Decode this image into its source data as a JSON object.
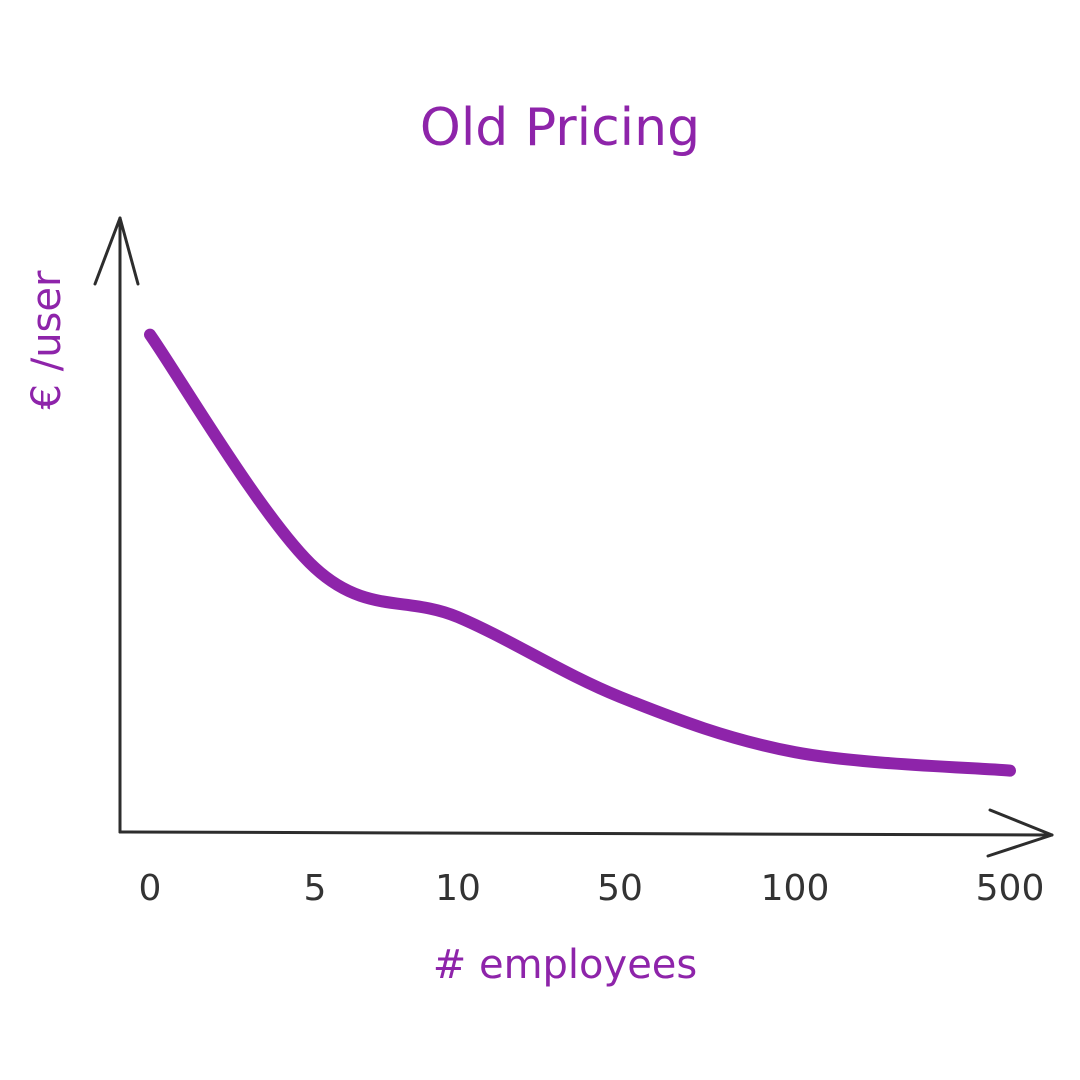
{
  "chart_data": {
    "type": "line",
    "title": "Old Pricing",
    "xlabel": "# employees",
    "ylabel": "€ /user",
    "categories": [
      "0",
      "5",
      "10",
      "50",
      "100",
      "500"
    ],
    "series": [
      {
        "values": [
          0.81,
          0.43,
          0.35,
          0.22,
          0.13,
          0.1
        ]
      }
    ],
    "ylim": [
      0,
      1
    ],
    "grid": false,
    "colors": {
      "series": "#8e24aa",
      "axis": "#2d2d2d",
      "ticks": "#333333",
      "text": "#8e24aa"
    }
  }
}
